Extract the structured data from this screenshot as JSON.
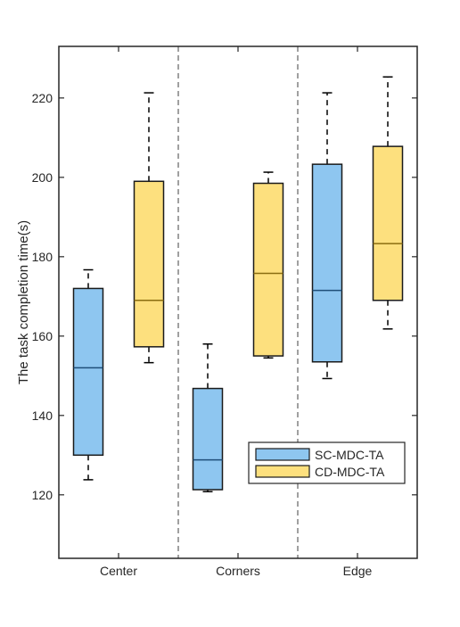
{
  "chart_data": {
    "type": "box",
    "title": "",
    "xlabel": "",
    "ylabel": "The task completion time(s)",
    "ylim": [
      104,
      233
    ],
    "yticks": [
      120,
      140,
      160,
      180,
      200,
      220
    ],
    "categories": [
      "Center",
      "Corners",
      "Edge"
    ],
    "grid": false,
    "group_separators": "dashed",
    "legend_position": "lower-right",
    "series": [
      {
        "name": "SC-MDC-TA",
        "color": "#8EC6F0",
        "boxes": [
          {
            "category": "Center",
            "min": 123.8,
            "q1": 130.0,
            "median": 152.0,
            "q3": 172.0,
            "max": 176.7
          },
          {
            "category": "Corners",
            "min": 120.8,
            "q1": 121.3,
            "median": 128.8,
            "q3": 146.8,
            "max": 158.0
          },
          {
            "category": "Edge",
            "min": 149.3,
            "q1": 153.5,
            "median": 171.5,
            "q3": 203.3,
            "max": 221.3
          }
        ]
      },
      {
        "name": "CD-MDC-TA",
        "color": "#FDE07E",
        "boxes": [
          {
            "category": "Center",
            "min": 153.3,
            "q1": 157.3,
            "median": 169.0,
            "q3": 199.0,
            "max": 221.3
          },
          {
            "category": "Corners",
            "min": 154.5,
            "q1": 155.0,
            "median": 175.8,
            "q3": 198.5,
            "max": 201.3
          },
          {
            "category": "Edge",
            "min": 161.8,
            "q1": 169.0,
            "median": 183.3,
            "q3": 207.8,
            "max": 225.3
          }
        ]
      }
    ]
  }
}
